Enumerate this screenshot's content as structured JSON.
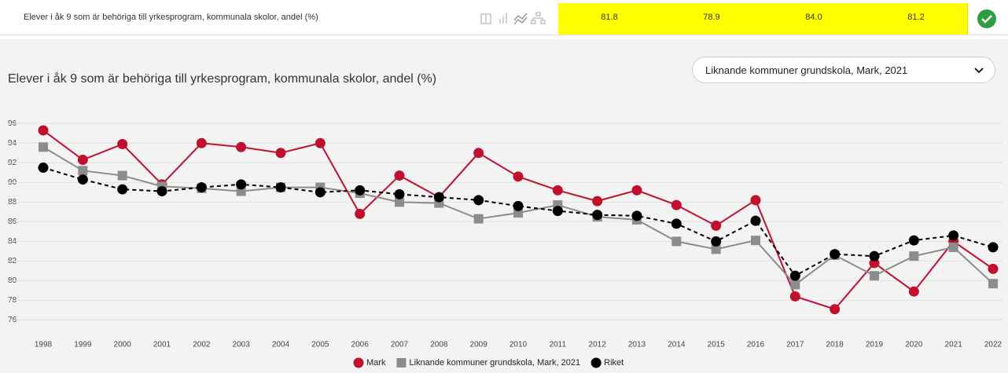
{
  "header_row": {
    "label": "Elever i åk 9 som är behöriga till yrkesprogram, kommunala skolor, andel (%)",
    "cells": [
      "81.8",
      "78.9",
      "84.0",
      "81.2"
    ]
  },
  "dropdown": "Liknande kommuner grundskola, Mark, 2021",
  "chart_data": {
    "type": "line",
    "title": "Elever i åk 9 som är behöriga till yrkesprogram, kommunala skolor, andel (%)",
    "categories": [
      "1998",
      "1999",
      "2000",
      "2001",
      "2002",
      "2003",
      "2004",
      "2005",
      "2006",
      "2007",
      "2008",
      "2009",
      "2010",
      "2011",
      "2012",
      "2013",
      "2014",
      "2015",
      "2016",
      "2017",
      "2018",
      "2019",
      "2020",
      "2021",
      "2022"
    ],
    "series": [
      {
        "name": "Mark",
        "color": "#c0102e",
        "marker": "circle",
        "dash": false,
        "values": [
          95.3,
          92.3,
          93.9,
          89.8,
          94.0,
          93.6,
          93.0,
          94.0,
          86.8,
          90.7,
          88.5,
          93.0,
          90.6,
          89.2,
          88.1,
          89.2,
          87.7,
          85.6,
          88.2,
          78.4,
          77.1,
          81.8,
          78.9,
          84.0,
          81.2
        ]
      },
      {
        "name": "Liknande kommuner grundskola, Mark, 2021",
        "color": "#8c8c8c",
        "marker": "square",
        "dash": false,
        "values": [
          93.6,
          91.2,
          90.7,
          89.6,
          89.4,
          89.1,
          89.5,
          89.5,
          88.9,
          88.0,
          87.9,
          86.3,
          86.9,
          87.7,
          86.5,
          86.2,
          84.0,
          83.2,
          84.1,
          79.6,
          82.6,
          80.5,
          82.5,
          83.4,
          79.7
        ]
      },
      {
        "name": "Riket",
        "color": "#000000",
        "marker": "circle",
        "dash": true,
        "values": [
          91.5,
          90.3,
          89.3,
          89.1,
          89.5,
          89.8,
          89.5,
          89.0,
          89.2,
          88.8,
          88.5,
          88.2,
          87.6,
          87.1,
          86.7,
          86.6,
          85.8,
          84.0,
          86.1,
          80.5,
          82.7,
          82.5,
          84.1,
          84.6,
          83.4
        ]
      }
    ],
    "ylim": [
      75,
      96.5
    ],
    "yticks": [
      76,
      78,
      80,
      82,
      84,
      86,
      88,
      90,
      92,
      94,
      96
    ],
    "grid": true
  }
}
